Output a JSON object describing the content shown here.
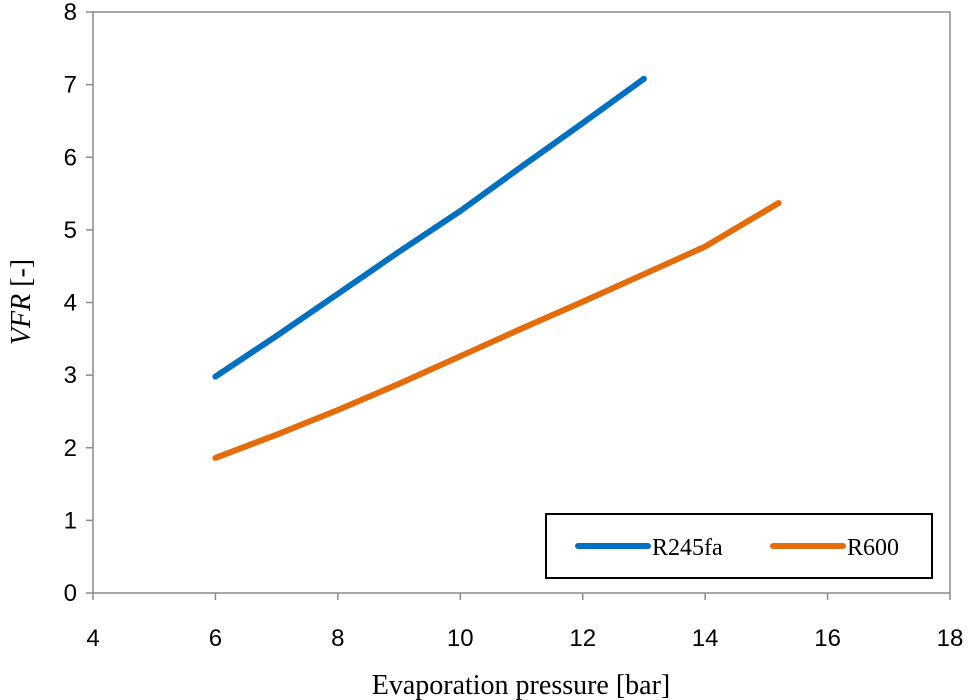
{
  "chart_data": {
    "type": "line",
    "xlabel": "Evaporation pressure [bar]",
    "ylabel": {
      "italic": "VFR",
      "unit": " [-]"
    },
    "xlim": [
      4,
      18
    ],
    "ylim": [
      0,
      8
    ],
    "xticks": [
      "4",
      "6",
      "8",
      "10",
      "12",
      "14",
      "16",
      "18"
    ],
    "yticks": [
      "0",
      "1",
      "2",
      "3",
      "4",
      "5",
      "6",
      "7",
      "8"
    ],
    "grid": false,
    "legend_position": "bottom-right",
    "series": [
      {
        "name": "R245fa",
        "color": "#0070C0",
        "x": [
          6,
          7,
          8,
          9,
          10,
          11,
          12,
          13
        ],
        "y": [
          2.98,
          3.54,
          4.12,
          4.7,
          5.26,
          5.87,
          6.47,
          7.08
        ]
      },
      {
        "name": "R600",
        "color": "#E46C0A",
        "x": [
          6,
          7,
          8,
          9,
          10,
          11,
          12,
          13,
          14,
          15.2
        ],
        "y": [
          1.86,
          2.18,
          2.52,
          2.88,
          3.26,
          3.64,
          4.01,
          4.39,
          4.77,
          5.37
        ]
      }
    ]
  }
}
